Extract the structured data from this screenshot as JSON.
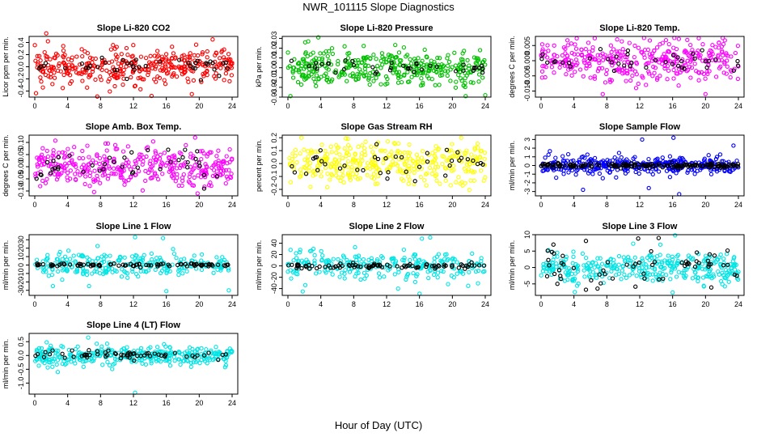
{
  "figure": {
    "title": "NWR_101115  Slope Diagnostics",
    "xlabel": "Hour of Day (UTC)"
  },
  "colors": {
    "red": "#ff0000",
    "green": "#00c000",
    "magenta": "#ff00ff",
    "yellow": "#ffff00",
    "blue": "#0000ff",
    "cyan": "#00e5e5",
    "black": "#000000"
  },
  "chart_data": [
    {
      "type": "scatter",
      "title": "Slope Li-820 CO2",
      "ylabel": "Licor ppm per min.",
      "xlim": [
        0,
        24
      ],
      "ylim": [
        -0.5,
        0.5
      ],
      "xticks": [
        0,
        4,
        8,
        12,
        16,
        20,
        24
      ],
      "yticks": [
        -0.4,
        -0.2,
        0.0,
        0.2,
        0.4
      ],
      "ytick_labels": [
        "-0.4",
        "-0.2",
        "0.0",
        "0.2",
        "0.4"
      ],
      "series": [
        {
          "color": "red",
          "n": 360,
          "spread": 0.15,
          "clip": [
            -0.48,
            0.55
          ],
          "seed": 11,
          "outliers": [
            [
              1.4,
              0.55
            ],
            [
              1.6,
              0.42
            ],
            [
              7.6,
              -0.49
            ],
            [
              14.2,
              -0.48
            ],
            [
              3.4,
              -0.35
            ],
            [
              19.1,
              -0.45
            ]
          ]
        },
        {
          "color": "black",
          "n": 40,
          "spread": 0.06,
          "clip": [
            -0.2,
            0.2
          ],
          "seed": 12,
          "outliers": [
            [
              11.2,
              -0.2
            ],
            [
              20.2,
              -0.22
            ]
          ]
        }
      ]
    },
    {
      "type": "scatter",
      "title": "Slope Li-820 Pressure",
      "ylabel": "kPa per min.",
      "xlim": [
        0,
        24
      ],
      "ylim": [
        -0.03,
        0.032
      ],
      "xticks": [
        0,
        4,
        8,
        12,
        16,
        20,
        24
      ],
      "yticks": [
        -0.03,
        -0.02,
        -0.01,
        0.0,
        0.01,
        0.02,
        0.03
      ],
      "ytick_labels": [
        "-0.03",
        "-0.02",
        "-0.01",
        "0.00",
        "0.01",
        "0.02",
        "0.03"
      ],
      "series": [
        {
          "color": "green",
          "n": 380,
          "spread": 0.009,
          "clip": [
            -0.029,
            0.03
          ],
          "seed": 21,
          "outliers": [
            [
              3.7,
              0.031
            ],
            [
              0.3,
              -0.029
            ],
            [
              24,
              -0.028
            ],
            [
              2.1,
              0.026
            ]
          ]
        },
        {
          "color": "black",
          "n": 40,
          "spread": 0.003,
          "clip": [
            -0.008,
            0.008
          ],
          "seed": 22,
          "outliers": []
        }
      ]
    },
    {
      "type": "scatter",
      "title": "Slope Li-820 Temp.",
      "ylabel": "degrees C per min.",
      "xlim": [
        0,
        24
      ],
      "ylim": [
        -0.012,
        0.008
      ],
      "xticks": [
        0,
        4,
        8,
        12,
        16,
        20,
        24
      ],
      "yticks": [
        -0.01,
        -0.005,
        0.0,
        0.005
      ],
      "ytick_labels": [
        "-0.010",
        "-0.005",
        "0.000",
        "0.005"
      ],
      "series": [
        {
          "color": "magenta",
          "n": 360,
          "spread": 0.003,
          "clip": [
            -0.0115,
            0.0075
          ],
          "seed": 31,
          "outliers": [
            [
              22.1,
              0.0075
            ],
            [
              7.5,
              -0.011
            ],
            [
              20.0,
              -0.011
            ]
          ]
        },
        {
          "color": "black",
          "n": 40,
          "spread": 0.0018,
          "clip": [
            -0.005,
            0.005
          ],
          "seed": 32,
          "outliers": []
        }
      ]
    },
    {
      "type": "scatter",
      "title": "Slope Amb. Box Temp.",
      "ylabel": "degrees C per min.",
      "xlim": [
        0,
        24
      ],
      "ylim": [
        -0.12,
        0.13
      ],
      "xticks": [
        0,
        4,
        8,
        12,
        16,
        20,
        24
      ],
      "yticks": [
        -0.1,
        -0.05,
        0.0,
        0.05,
        0.1
      ],
      "ytick_labels": [
        "-0.10",
        "-0.05",
        "0.00",
        "0.05",
        "0.10"
      ],
      "series": [
        {
          "color": "magenta",
          "n": 360,
          "spread": 0.04,
          "clip": [
            -0.11,
            0.12
          ],
          "seed": 41,
          "outliers": [
            [
              19.5,
              0.12
            ],
            [
              19.8,
              -0.11
            ]
          ]
        },
        {
          "color": "black",
          "n": 40,
          "spread": 0.03,
          "clip": [
            -0.08,
            0.07
          ],
          "seed": 42,
          "outliers": [
            [
              20.6,
              -0.09
            ]
          ]
        }
      ]
    },
    {
      "type": "scatter",
      "title": "Slope Gas Stream RH",
      "ylabel": "percent per min.",
      "xlim": [
        0,
        24
      ],
      "ylim": [
        -0.25,
        0.22
      ],
      "xticks": [
        0,
        4,
        8,
        12,
        16,
        20,
        24
      ],
      "yticks": [
        -0.2,
        -0.1,
        0.0,
        0.1,
        0.2
      ],
      "ytick_labels": [
        "-0.2",
        "-0.1",
        "0.0",
        "0.1",
        "0.2"
      ],
      "series": [
        {
          "color": "yellow",
          "n": 360,
          "spread": 0.08,
          "clip": [
            -0.23,
            0.2
          ],
          "seed": 51,
          "outliers": []
        },
        {
          "color": "black",
          "n": 40,
          "spread": 0.06,
          "clip": [
            -0.15,
            0.15
          ],
          "seed": 52,
          "outliers": []
        }
      ]
    },
    {
      "type": "scatter",
      "title": "Slope Sample Flow",
      "ylabel": "ml/min per min.",
      "xlim": [
        0,
        24
      ],
      "ylim": [
        -3.5,
        3.5
      ],
      "xticks": [
        0,
        4,
        8,
        12,
        16,
        20,
        24
      ],
      "yticks": [
        -3,
        -2,
        -1,
        0,
        1,
        2,
        3
      ],
      "ytick_labels": [
        "-3",
        "-2",
        "-1",
        "0",
        "1",
        "2",
        "3"
      ],
      "series": [
        {
          "color": "blue",
          "n": 360,
          "spread": 0.5,
          "clip": [
            -3.3,
            3.2
          ],
          "seed": 61,
          "outliers": [
            [
              12.3,
              3.0
            ],
            [
              16.1,
              3.2
            ],
            [
              16.8,
              -3.3
            ],
            [
              5.1,
              -2.8
            ],
            [
              23.4,
              2.3
            ],
            [
              13.1,
              -2.6
            ]
          ]
        },
        {
          "color": "black",
          "n": 160,
          "spread": 0.12,
          "clip": [
            -0.5,
            0.5
          ],
          "seed": 62,
          "outliers": []
        }
      ]
    },
    {
      "type": "scatter",
      "title": "Slope Line 1 Flow",
      "ylabel": "ml/min per min.",
      "xlim": [
        0,
        24
      ],
      "ylim": [
        -36,
        36
      ],
      "xticks": [
        0,
        4,
        8,
        12,
        16,
        20,
        24
      ],
      "yticks": [
        -30,
        -20,
        -10,
        0,
        10,
        20,
        30
      ],
      "ytick_labels": [
        "-30",
        "-20",
        "-10",
        "0",
        "10",
        "20",
        "30"
      ],
      "series": [
        {
          "color": "cyan",
          "n": 260,
          "spread": 7,
          "clip": [
            -34,
            34
          ],
          "seed": 71,
          "outliers": [
            [
              12.2,
              33
            ],
            [
              15.6,
              32
            ],
            [
              16.0,
              -31
            ],
            [
              23.6,
              -30
            ],
            [
              2.2,
              -25
            ],
            [
              6.6,
              -25
            ]
          ]
        },
        {
          "color": "black",
          "n": 90,
          "spread": 1.0,
          "clip": [
            -3,
            3
          ],
          "seed": 72,
          "outliers": []
        }
      ]
    },
    {
      "type": "scatter",
      "title": "Slope Line 2 Flow",
      "ylabel": "ml/min per min.",
      "xlim": [
        0,
        24
      ],
      "ylim": [
        -52,
        55
      ],
      "xticks": [
        0,
        4,
        8,
        12,
        16,
        20,
        24
      ],
      "yticks": [
        -40,
        -20,
        0,
        20,
        40
      ],
      "ytick_labels": [
        "-40",
        "-20",
        "0",
        "20",
        "40"
      ],
      "series": [
        {
          "color": "cyan",
          "n": 260,
          "spread": 12,
          "clip": [
            -50,
            52
          ],
          "seed": 81,
          "outliers": [
            [
              16.3,
              48
            ],
            [
              17.3,
              50
            ],
            [
              1.8,
              -45
            ],
            [
              13.4,
              -40
            ],
            [
              16.0,
              -49
            ]
          ]
        },
        {
          "color": "black",
          "n": 90,
          "spread": 2.5,
          "clip": [
            -6,
            6
          ],
          "seed": 82,
          "outliers": []
        }
      ]
    },
    {
      "type": "scatter",
      "title": "Slope Line 3 Flow",
      "ylabel": "ml/min per min.",
      "xlim": [
        0,
        24
      ],
      "ylim": [
        -8.5,
        10
      ],
      "xticks": [
        0,
        4,
        8,
        12,
        16,
        20,
        24
      ],
      "yticks": [
        -5,
        0,
        5,
        10
      ],
      "ytick_labels": [
        "-5",
        "0",
        "5",
        "10"
      ],
      "series": [
        {
          "color": "cyan",
          "n": 360,
          "spread": 2.4,
          "clip": [
            -8,
            9.8
          ],
          "seed": 91,
          "outliers": [
            [
              16.3,
              9.8
            ],
            [
              4.1,
              -7.5
            ],
            [
              16.0,
              -7.6
            ]
          ]
        },
        {
          "color": "black",
          "n": 60,
          "spread": 3.0,
          "clip": [
            -7,
            9
          ],
          "seed": 92,
          "outliers": [
            [
              14.3,
              9
            ],
            [
              1.5,
              7.0
            ]
          ]
        }
      ]
    },
    {
      "type": "scatter",
      "title": "Slope Line 4 (LT) Flow",
      "ylabel": "ml/min per min.",
      "xlim": [
        0,
        24
      ],
      "ylim": [
        -1.4,
        0.8
      ],
      "xticks": [
        0,
        4,
        8,
        12,
        16,
        20,
        24
      ],
      "yticks": [
        -1.0,
        -0.5,
        0.0,
        0.5
      ],
      "ytick_labels": [
        "-1.0",
        "-0.5",
        "0.0",
        "0.5"
      ],
      "series": [
        {
          "color": "cyan",
          "n": 360,
          "spread": 0.17,
          "clip": [
            -1.35,
            0.7
          ],
          "seed": 101,
          "outliers": [
            [
              12.2,
              -1.35
            ],
            [
              6.5,
              0.65
            ],
            [
              2.8,
              -0.6
            ]
          ]
        },
        {
          "color": "black",
          "n": 60,
          "spread": 0.1,
          "clip": [
            -0.3,
            0.3
          ],
          "seed": 102,
          "outliers": []
        }
      ]
    }
  ]
}
